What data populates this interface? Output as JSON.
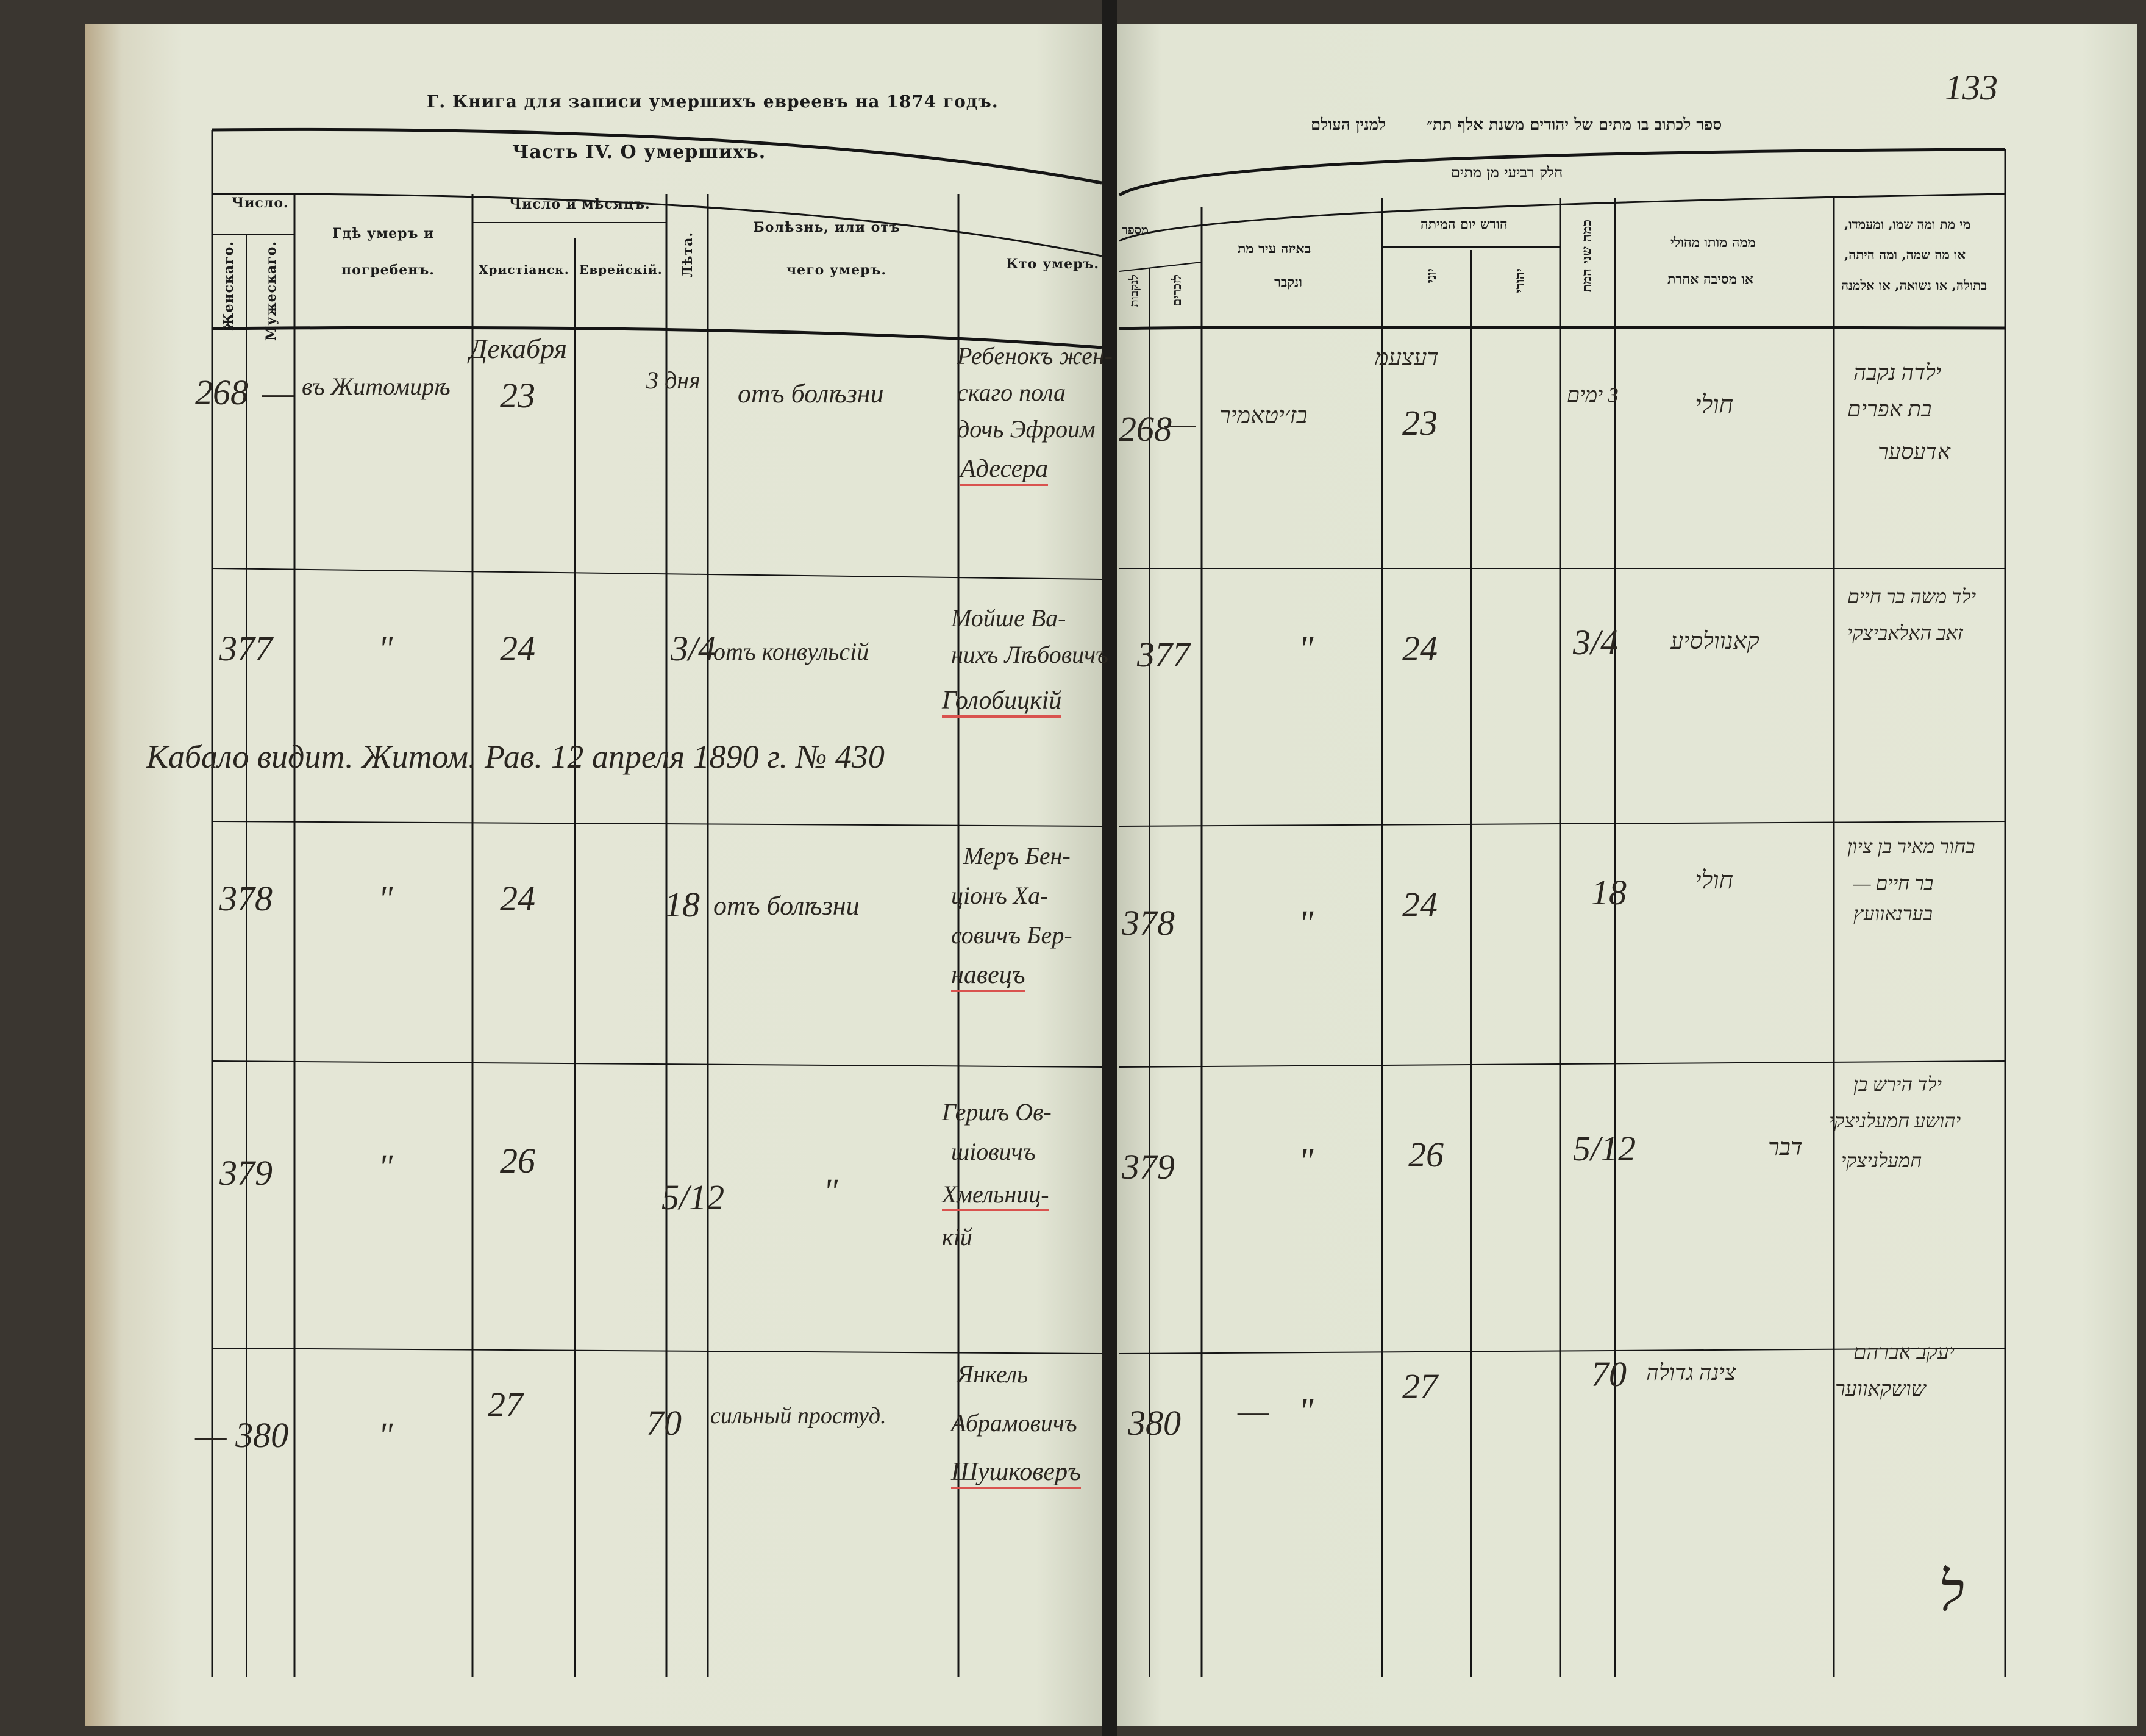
{
  "left_page": {
    "title": "Г. Книга для записи умершихъ евреевъ на 1874 годъ.",
    "section": "Часть IV. О умершихъ.",
    "headers": {
      "number": "Число.",
      "female": "Женскаго.",
      "male": "Мужескаго.",
      "place_1": "Гдѣ умеръ и",
      "place_2": "погребенъ.",
      "date": "Число и мѣсяцъ.",
      "christian": "Христіанск.",
      "jewish": "Еврейскій.",
      "age": "Лѣта.",
      "cause_1": "Болѣзнь, или отъ",
      "cause_2": "чего умеръ.",
      "who": "Кто умеръ."
    },
    "month_note": "Декабря",
    "rows": [
      {
        "female": "268",
        "male": "—",
        "place": "въ Житомирѣ",
        "date": "23",
        "age": "3 дня",
        "cause": "отъ болѣзни",
        "who": [
          "Ребенокъ жен-",
          "скаго пола",
          "дочь Эфроим",
          "Адесера"
        ]
      },
      {
        "female": "377",
        "male": "",
        "place": "\"",
        "date": "24",
        "age": "3/4",
        "cause": "отъ конвульсій",
        "who": [
          "Мойше Ва-",
          "нихъ Лѣбовичъ",
          "Голобицкій"
        ]
      },
      {
        "female": "378",
        "male": "",
        "place": "\"",
        "date": "24",
        "age": "18",
        "cause": "отъ болѣзни",
        "who": [
          "Меръ Бен-",
          "ціонъ Ха-",
          "совичъ Бер-",
          "навецъ"
        ]
      },
      {
        "female": "379",
        "male": "",
        "place": "\"",
        "date": "26",
        "age": "5/12",
        "cause": "\"",
        "who": [
          "Гершъ Ов-",
          "шіовичъ",
          "Хмельниц-",
          "кій"
        ]
      },
      {
        "female": "— 380",
        "male": "",
        "place": "\"",
        "date": "27",
        "age": "70",
        "cause": "сильный простуд.",
        "who": [
          "Янкель",
          "Абрамовичъ",
          "Шушковеръ"
        ]
      }
    ],
    "annotation": "Кабало видит. Житом. Рав. 12 апреля 1890 г. № 430"
  },
  "right_page": {
    "page_number": "133",
    "title_1": "ספר לכתוב בו מתים של יהודים משנת אלף תת״",
    "title_2": "למנין העולם",
    "section": "חלק רביעי מן מתים",
    "headers": {
      "number": "מספר",
      "female": "לנקבות",
      "male": "לזכרים",
      "place_1": "באיזה עיר מת",
      "place_2": "ונקבר",
      "date": "חודש יום המיתה",
      "civil": "יוני",
      "jewish": "יהודי",
      "age": "כמה שני המת",
      "cause_1": "ממה מותו מחולי",
      "cause_2": "או מסיבה אחרת",
      "who_1": "מי מת ומה שמו, ומעמדו,",
      "who_2": "או מה שמה, ומה היתה,",
      "who_3": "בתולה, או נשואה, או אלמנה"
    },
    "rows": [
      {
        "female": "268",
        "male": "—",
        "place": "בז׳יטאמיר",
        "date": "23",
        "month": "דעצעמ",
        "age": "3 ימים",
        "cause": "חולי",
        "who": [
          "ילדה נקבה",
          "בת אפרים",
          "אדעסער"
        ]
      },
      {
        "female": "377",
        "male": "",
        "place": "\"",
        "date": "24",
        "age": "3/4",
        "cause": "קאנוולסיע",
        "who": [
          "ילד משה בר חיים",
          "זאב האלאביצקי"
        ]
      },
      {
        "female": "378",
        "male": "",
        "place": "\"",
        "date": "24",
        "age": "18",
        "cause": "חולי",
        "who": [
          "בחור מאיר בן ציון",
          "בר חיים —",
          "בערנאוועץ"
        ]
      },
      {
        "female": "379",
        "male": "",
        "place": "\"",
        "date": "26",
        "age": "5/12",
        "cause": "דבר",
        "who": [
          "ילד הירש בן",
          "יהושע חמעלניצקי",
          "חמעלניצקי"
        ]
      },
      {
        "female": "380",
        "male": "—",
        "place": "\"",
        "date": "27",
        "age": "70",
        "cause": "צינה גדולה",
        "who": [
          "יעקב אברהם",
          "שושקאווער"
        ]
      }
    ],
    "footer_mark": "ל"
  }
}
